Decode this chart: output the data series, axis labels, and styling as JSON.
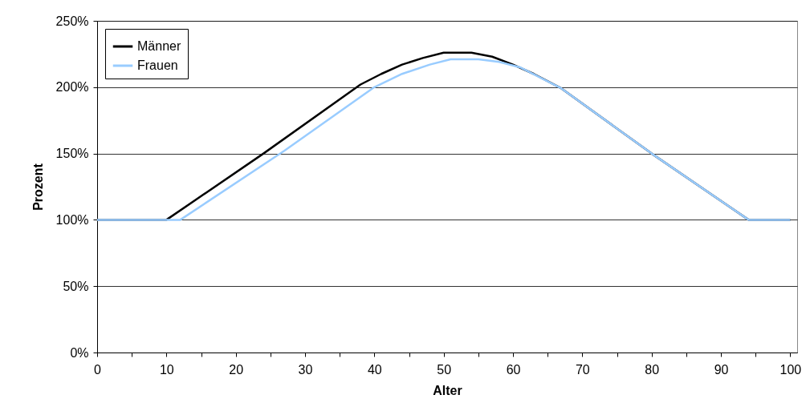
{
  "chart_data": {
    "type": "line",
    "xlabel": "Alter",
    "ylabel": "Prozent",
    "xlim": [
      0,
      101
    ],
    "xticks": [
      0,
      {
        "value": 5,
        "label": null
      },
      10,
      {
        "value": 15,
        "label": null
      },
      20,
      {
        "value": 25,
        "label": null
      },
      30,
      {
        "value": 35,
        "label": null
      },
      40,
      {
        "value": 45,
        "label": null
      },
      50,
      {
        "value": 55,
        "label": null
      },
      60,
      {
        "value": 65,
        "label": null
      },
      70,
      {
        "value": 75,
        "label": null
      },
      80,
      {
        "value": 85,
        "label": null
      },
      90,
      {
        "value": 95,
        "label": null
      },
      100
    ],
    "ylim": [
      0,
      250
    ],
    "yticks": [
      {
        "value": 0,
        "label": "0%"
      },
      {
        "value": 50,
        "label": "50%"
      },
      {
        "value": 100,
        "label": "100%"
      },
      {
        "value": 150,
        "label": "150%"
      },
      {
        "value": 200,
        "label": "200%"
      },
      {
        "value": 250,
        "label": "250%"
      }
    ],
    "grid": "y",
    "legend": "top left",
    "marker": "none",
    "line_style": "solid",
    "series": [
      {
        "name": "Männer",
        "color": "#000000",
        "x": [
          0,
          10,
          24,
          38,
          41,
          44,
          47,
          50,
          54,
          57,
          60,
          63,
          67,
          80,
          94,
          100
        ],
        "values": [
          100,
          100,
          150,
          202,
          210,
          217,
          222,
          226,
          226,
          223,
          217,
          210,
          199,
          150,
          100,
          100
        ]
      },
      {
        "name": "Frauen",
        "color": "#99ccff",
        "x": [
          0,
          12,
          27,
          40,
          44,
          48,
          51,
          55,
          58,
          61,
          64,
          67,
          80,
          94,
          100
        ],
        "values": [
          100,
          100,
          152,
          200,
          210,
          217,
          221,
          221,
          219,
          215,
          207,
          199,
          150,
          100,
          100
        ]
      }
    ]
  }
}
